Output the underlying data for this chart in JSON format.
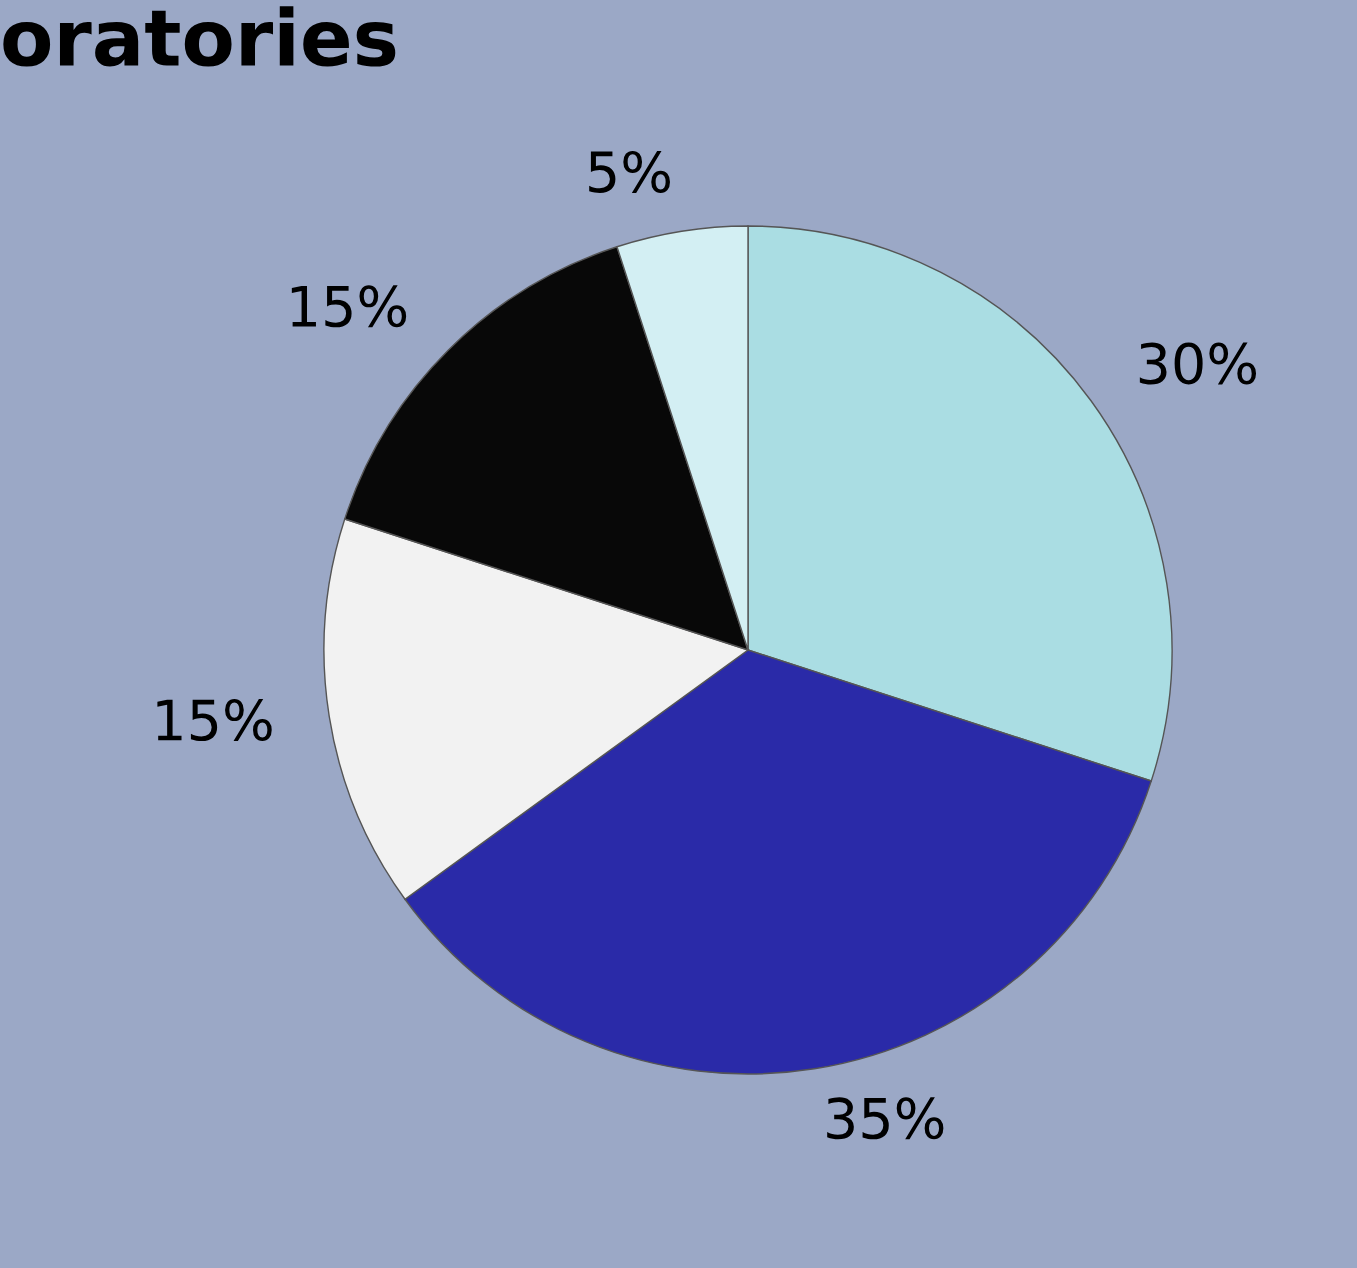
{
  "chart_data": {
    "type": "pie",
    "title": "oratories",
    "categories": [
      null,
      null,
      null,
      null,
      null
    ],
    "values": [
      30,
      35,
      15,
      15,
      5
    ],
    "value_labels": [
      "30%",
      "35%",
      "15%",
      "15%",
      "5%"
    ],
    "colors": [
      "#aadde3",
      "#2a2aa8",
      "#f2f2f2",
      "#080808",
      "#d3eff3"
    ]
  }
}
